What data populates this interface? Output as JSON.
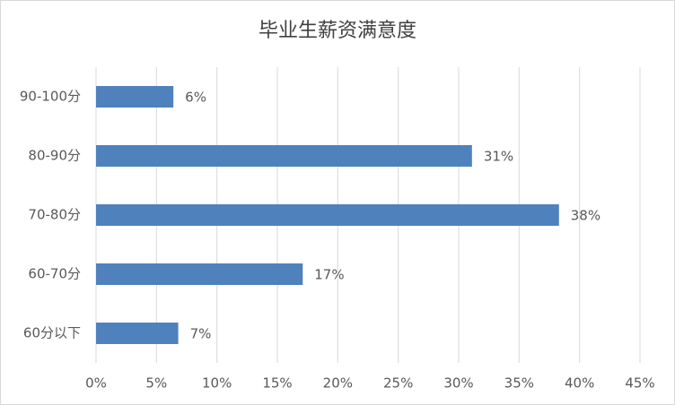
{
  "chart_data": {
    "type": "bar",
    "orientation": "horizontal",
    "title": "毕业生薪资满意度",
    "categories": [
      "90-100分",
      "80-90分",
      "70-80分",
      "60-70分",
      "60分以下"
    ],
    "values": [
      6.4,
      31.1,
      38.3,
      17.1,
      6.8
    ],
    "value_labels": [
      "6%",
      "31%",
      "38%",
      "17%",
      "7%"
    ],
    "color": "#4f81bd",
    "xlim": [
      0,
      45
    ],
    "xticks": [
      {
        "value": 0,
        "label": "0%"
      },
      {
        "value": 5,
        "label": "5%"
      },
      {
        "value": 10,
        "label": "10%"
      },
      {
        "value": 15,
        "label": "15%"
      },
      {
        "value": 20,
        "label": "20%"
      },
      {
        "value": 25,
        "label": "25%"
      },
      {
        "value": 30,
        "label": "30%"
      },
      {
        "value": 35,
        "label": "35%"
      },
      {
        "value": 40,
        "label": "40%"
      },
      {
        "value": 45,
        "label": "45%"
      }
    ],
    "grid": true
  }
}
